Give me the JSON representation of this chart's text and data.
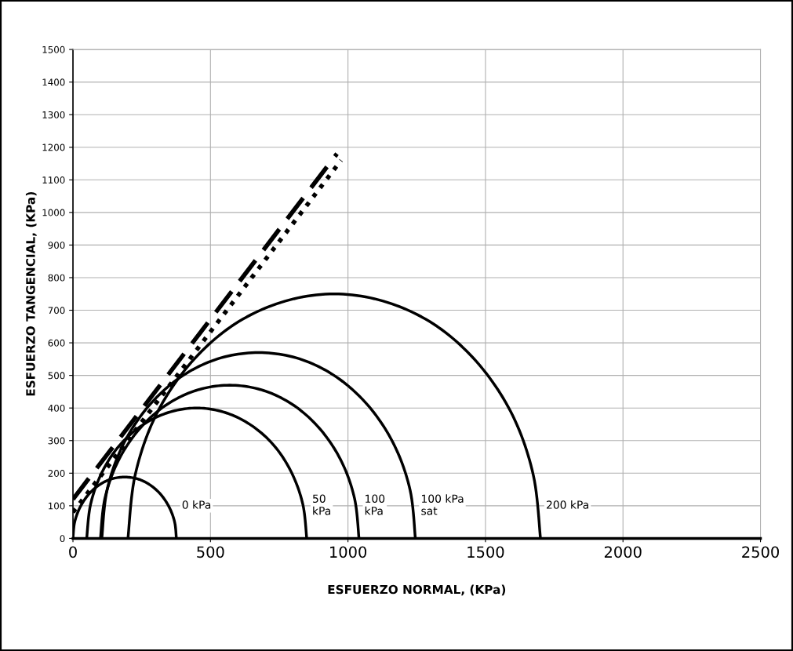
{
  "chart_data": {
    "type": "line",
    "xlabel": "ESFUERZO NORMAL, (KPa)",
    "ylabel": "ESFUERZO TANGENCIAL, (KPa)",
    "xlim": [
      0,
      2500
    ],
    "xticks": [
      0,
      500,
      1000,
      1500,
      2000,
      2500
    ],
    "ylim": [
      0,
      1500
    ],
    "yticks": [
      0,
      100,
      200,
      300,
      400,
      500,
      600,
      700,
      800,
      900,
      1000,
      1100,
      1200,
      1300,
      1400,
      1500
    ],
    "grid": true,
    "marker": "none",
    "series": [
      {
        "name": "0 kPa",
        "color": "#000000",
        "line_style": "solid",
        "x": [
          0,
          6,
          25,
          55,
          94,
          139,
          188,
          237,
          282,
          321,
          351,
          370,
          376
        ],
        "values": [
          0,
          49,
          94,
          133,
          163,
          182,
          188,
          182,
          163,
          133,
          94,
          49,
          0
        ]
      },
      {
        "name": "50\nkPa",
        "color": "#000000",
        "line_style": "solid",
        "x": [
          50,
          64,
          104,
          167,
          250,
          346,
          450,
          554,
          650,
          733,
          796,
          836,
          850
        ],
        "values": [
          0,
          104,
          200,
          283,
          346,
          386,
          400,
          386,
          346,
          283,
          200,
          104,
          0
        ]
      },
      {
        "name": "100\nkPa",
        "color": "#000000",
        "line_style": "solid",
        "x": [
          100,
          116,
          163,
          238,
          335,
          448,
          570,
          692,
          805,
          902,
          977,
          1024,
          1040
        ],
        "values": [
          0,
          122,
          235,
          332,
          407,
          454,
          470,
          454,
          407,
          332,
          235,
          122,
          0
        ]
      },
      {
        "name": "100 kPa\nsat",
        "color": "#000000",
        "line_style": "solid",
        "x": [
          105,
          124,
          181,
          272,
          390,
          527,
          675,
          823,
          960,
          1078,
          1169,
          1226,
          1245
        ],
        "values": [
          0,
          148,
          285,
          403,
          494,
          551,
          570,
          551,
          494,
          403,
          285,
          148,
          0
        ]
      },
      {
        "name": "200 kPa",
        "color": "#000000",
        "line_style": "solid",
        "x": [
          200,
          226,
          300,
          420,
          575,
          756,
          950,
          1144,
          1325,
          1480,
          1600,
          1674,
          1700
        ],
        "values": [
          0,
          194,
          375,
          530,
          650,
          724,
          750,
          724,
          650,
          530,
          375,
          194,
          0
        ]
      },
      {
        "color": "#000000",
        "line_style": "dashed",
        "x": [
          0,
          960
        ],
        "values": [
          120,
          1180
        ]
      },
      {
        "color": "#000000",
        "line_style": "dotted",
        "x": [
          0,
          975
        ],
        "values": [
          80,
          1160
        ]
      }
    ]
  }
}
